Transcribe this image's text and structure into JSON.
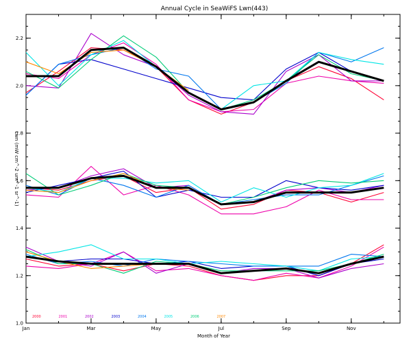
{
  "chart_data": {
    "type": "line",
    "title": "Annual Cycle in SeaWiFS Lwn(443)",
    "xlabel": "Month of Year",
    "ylabel": "Lwn (mW cm^-2 um^-1 sr^-1)",
    "xlim": [
      1,
      12.5
    ],
    "ylim": [
      1.0,
      2.3
    ],
    "x_ticks": [
      {
        "value": 1,
        "label": "Jan"
      },
      {
        "value": 3,
        "label": "Mar"
      },
      {
        "value": 5,
        "label": "May"
      },
      {
        "value": 7,
        "label": "Jul"
      },
      {
        "value": 9,
        "label": "Sep"
      },
      {
        "value": 11,
        "label": "Nov"
      }
    ],
    "y_ticks": [
      {
        "value": 1.0,
        "label": "1.0"
      },
      {
        "value": 1.2,
        "label": "1.2"
      },
      {
        "value": 1.4,
        "label": "1.4"
      },
      {
        "value": 1.6,
        "label": "1.6"
      },
      {
        "value": 1.8,
        "label": "1.8"
      },
      {
        "value": 2.0,
        "label": "2.0"
      },
      {
        "value": 2.2,
        "label": "2.2"
      }
    ],
    "grid": false,
    "legend": "bottom-left",
    "years": [
      {
        "name": "2000",
        "color": "#ff0033"
      },
      {
        "name": "2001",
        "color": "#ee00aa"
      },
      {
        "name": "2002",
        "color": "#aa00cc"
      },
      {
        "name": "2003",
        "color": "#0000cc"
      },
      {
        "name": "2004",
        "color": "#0077ee"
      },
      {
        "name": "2005",
        "color": "#00e5e5"
      },
      {
        "name": "2006",
        "color": "#00cc77"
      },
      {
        "name": "2007",
        "color": "#ff8800"
      }
    ],
    "x": [
      1,
      2,
      3,
      4,
      5,
      6,
      7,
      8,
      9,
      10,
      11,
      12
    ],
    "groups": [
      {
        "id": "upper",
        "series": [
          {
            "name": "2000",
            "values": [
              1.97,
              2.06,
              2.16,
              2.15,
              2.08,
              1.94,
              1.88,
              1.93,
              2.02,
              2.08,
              2.03,
              1.94
            ]
          },
          {
            "name": "2001",
            "values": [
              2.05,
              2.03,
              2.13,
              2.18,
              2.09,
              1.94,
              1.89,
              1.9,
              2.01,
              2.04,
              2.02,
              2.01
            ]
          },
          {
            "name": "2002",
            "values": [
              2.0,
              1.99,
              2.22,
              2.13,
              2.08,
              1.96,
              1.89,
              1.88,
              2.06,
              2.13,
              2.02,
              2.02
            ]
          },
          {
            "name": "2003",
            "values": [
              1.96,
              2.09,
              2.11,
              2.07,
              2.03,
              1.99,
              1.95,
              1.94,
              2.07,
              2.14,
              2.06,
              2.02
            ]
          },
          {
            "name": "2004",
            "values": [
              1.96,
              2.09,
              2.13,
              2.16,
              2.07,
              2.04,
              1.9,
              1.93,
              2.01,
              2.14,
              2.1,
              2.16
            ]
          },
          {
            "name": "2005",
            "values": [
              2.14,
              2.0,
              2.13,
              2.19,
              2.08,
              1.97,
              1.9,
              2.0,
              2.02,
              2.14,
              2.11,
              2.09
            ]
          },
          {
            "name": "2006",
            "values": [
              2.06,
              1.99,
              2.11,
              2.21,
              2.12,
              1.97,
              1.9,
              1.94,
              2.02,
              2.13,
              2.05,
              2.02
            ]
          },
          {
            "name": "2007",
            "values": [
              2.1,
              2.05,
              2.14,
              2.15,
              2.08,
              1.98,
              null,
              null,
              null,
              null,
              null,
              null
            ]
          }
        ],
        "mean": [
          2.04,
          2.04,
          2.15,
          2.16,
          2.08,
          1.97,
          1.9,
          1.93,
          2.02,
          2.1,
          2.06,
          2.02
        ]
      },
      {
        "id": "middle",
        "series": [
          {
            "name": "2000",
            "values": [
              1.57,
              1.56,
              1.6,
              1.62,
              1.55,
              1.57,
              1.48,
              1.5,
              1.56,
              1.55,
              1.51,
              1.55
            ]
          },
          {
            "name": "2001",
            "values": [
              1.54,
              1.53,
              1.66,
              1.54,
              1.58,
              1.54,
              1.46,
              1.46,
              1.49,
              1.56,
              1.52,
              1.52
            ]
          },
          {
            "name": "2002",
            "values": [
              1.56,
              1.57,
              1.62,
              1.65,
              1.57,
              1.58,
              1.5,
              1.51,
              1.56,
              1.57,
              1.55,
              1.58
            ]
          },
          {
            "name": "2003",
            "values": [
              1.55,
              1.58,
              1.61,
              1.64,
              1.53,
              1.56,
              1.53,
              1.53,
              1.6,
              1.57,
              1.56,
              1.58
            ]
          },
          {
            "name": "2004",
            "values": [
              1.58,
              1.54,
              1.61,
              1.58,
              1.53,
              1.58,
              1.5,
              1.52,
              1.54,
              1.54,
              1.58,
              1.62
            ]
          },
          {
            "name": "2005",
            "values": [
              1.57,
              1.55,
              1.61,
              1.61,
              1.59,
              1.6,
              1.51,
              1.57,
              1.53,
              1.57,
              1.58,
              1.63
            ]
          },
          {
            "name": "2006",
            "values": [
              1.63,
              1.54,
              1.58,
              1.63,
              1.58,
              1.57,
              1.5,
              1.53,
              1.57,
              1.6,
              1.59,
              1.6
            ]
          },
          {
            "name": "2007",
            "values": [
              1.56,
              1.55,
              1.6,
              1.63,
              1.57,
              1.56,
              null,
              null,
              null,
              null,
              null,
              null
            ]
          }
        ],
        "mean": [
          1.57,
          1.57,
          1.61,
          1.62,
          1.57,
          1.57,
          1.5,
          1.51,
          1.55,
          1.55,
          1.55,
          1.57
        ]
      },
      {
        "id": "lower",
        "series": [
          {
            "name": "2000",
            "values": [
              1.27,
              1.24,
              1.25,
              1.22,
              1.25,
              1.24,
              1.2,
              1.18,
              1.2,
              1.2,
              1.25,
              1.33
            ]
          },
          {
            "name": "2001",
            "values": [
              1.24,
              1.23,
              1.25,
              1.3,
              1.22,
              1.23,
              1.2,
              1.18,
              1.21,
              1.19,
              1.24,
              1.32
            ]
          },
          {
            "name": "2002",
            "values": [
              1.32,
              1.26,
              1.24,
              1.3,
              1.21,
              1.25,
              1.21,
              1.23,
              1.23,
              1.19,
              1.23,
              1.25
            ]
          },
          {
            "name": "2003",
            "values": [
              1.28,
              1.26,
              1.27,
              1.27,
              1.25,
              1.26,
              1.23,
              1.24,
              1.24,
              1.2,
              1.25,
              1.27
            ]
          },
          {
            "name": "2004",
            "values": [
              1.29,
              1.25,
              1.26,
              1.24,
              1.27,
              1.26,
              1.25,
              1.24,
              1.24,
              1.24,
              1.29,
              1.28
            ]
          },
          {
            "name": "2005",
            "values": [
              1.28,
              1.3,
              1.33,
              1.27,
              1.27,
              1.25,
              1.26,
              1.25,
              1.24,
              1.22,
              1.27,
              1.28
            ]
          },
          {
            "name": "2006",
            "values": [
              1.31,
              1.25,
              1.25,
              1.21,
              1.26,
              1.25,
              1.22,
              1.22,
              1.22,
              1.22,
              1.25,
              1.29
            ]
          },
          {
            "name": "2007",
            "values": [
              1.3,
              1.26,
              1.23,
              1.24,
              1.25,
              1.25,
              null,
              null,
              null,
              null,
              null,
              null
            ]
          }
        ],
        "mean": [
          1.28,
          1.26,
          1.25,
          1.25,
          1.25,
          1.25,
          1.21,
          1.22,
          1.23,
          1.21,
          1.25,
          1.28
        ]
      }
    ]
  }
}
